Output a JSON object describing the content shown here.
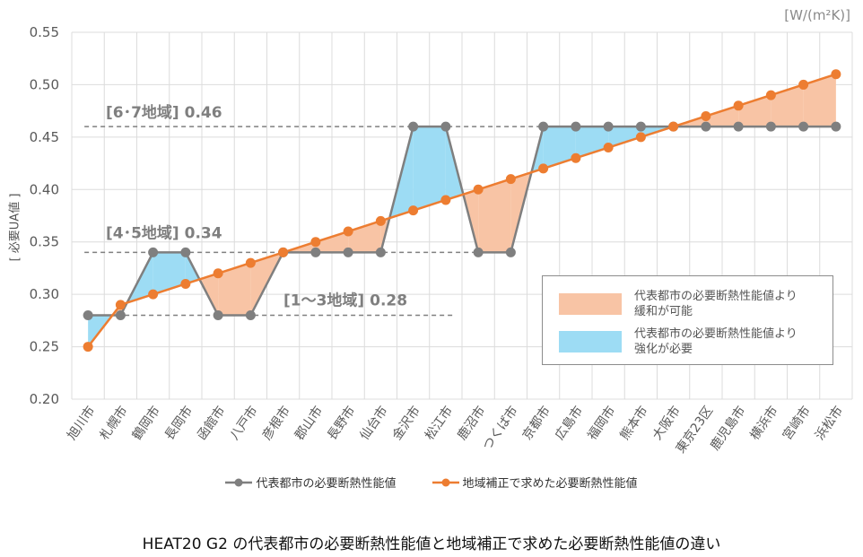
{
  "unit_label": "[W/(m²K)]",
  "ylabel": "[ 必要UA値 ]",
  "caption": "HEAT20 G2 の代表都市の必要断熱性能値と地域補正で求めた必要断熱性能値の違い",
  "legend_fill": {
    "relaxed": "代表都市の必要断熱性能値より\n緩和が可能",
    "strengthen": "代表都市の必要断熱性能値より\n強化が必要"
  },
  "colors": {
    "gray_series": "#7f7f7f",
    "orange_series": "#ed7d31",
    "relaxed_fill": "#f8c4a5",
    "strengthen_fill": "#9ddcf4",
    "grid": "#dcdcdc"
  },
  "chart_data": {
    "type": "line",
    "categories": [
      "旭川市",
      "札幌市",
      "鶴岡市",
      "長岡市",
      "函館市",
      "八戸市",
      "彦根市",
      "郡山市",
      "長野市",
      "仙台市",
      "金沢市",
      "松江市",
      "鹿沼市",
      "つくば市",
      "京都市",
      "広島市",
      "福岡市",
      "熊本市",
      "大阪市",
      "東京23区",
      "鹿児島市",
      "横浜市",
      "宮崎市",
      "浜松市"
    ],
    "series": [
      {
        "name": "代表都市の必要断熱性能値",
        "color": "#7f7f7f",
        "values": [
          0.28,
          0.28,
          0.34,
          0.34,
          0.28,
          0.28,
          0.34,
          0.34,
          0.34,
          0.34,
          0.46,
          0.46,
          0.34,
          0.34,
          0.46,
          0.46,
          0.46,
          0.46,
          0.46,
          0.46,
          0.46,
          0.46,
          0.46,
          0.46
        ]
      },
      {
        "name": "地域補正で求めた必要断熱性能値",
        "color": "#ed7d31",
        "values": [
          0.25,
          0.29,
          0.3,
          0.31,
          0.32,
          0.33,
          0.34,
          0.35,
          0.36,
          0.37,
          0.38,
          0.39,
          0.4,
          0.41,
          0.42,
          0.43,
          0.44,
          0.45,
          0.46,
          0.47,
          0.48,
          0.49,
          0.5,
          0.51
        ]
      }
    ],
    "reference_lines": [
      {
        "label": "[6･7地域] 0.46",
        "value": 0.46
      },
      {
        "label": "[4･5地域] 0.34",
        "value": 0.34
      },
      {
        "label": "[1～3地域] 0.28",
        "value": 0.28
      }
    ],
    "ylim": [
      0.2,
      0.55
    ],
    "yticks": [
      "0.20",
      "0.25",
      "0.30",
      "0.35",
      "0.40",
      "0.45",
      "0.50",
      "0.55"
    ],
    "grid": true
  }
}
